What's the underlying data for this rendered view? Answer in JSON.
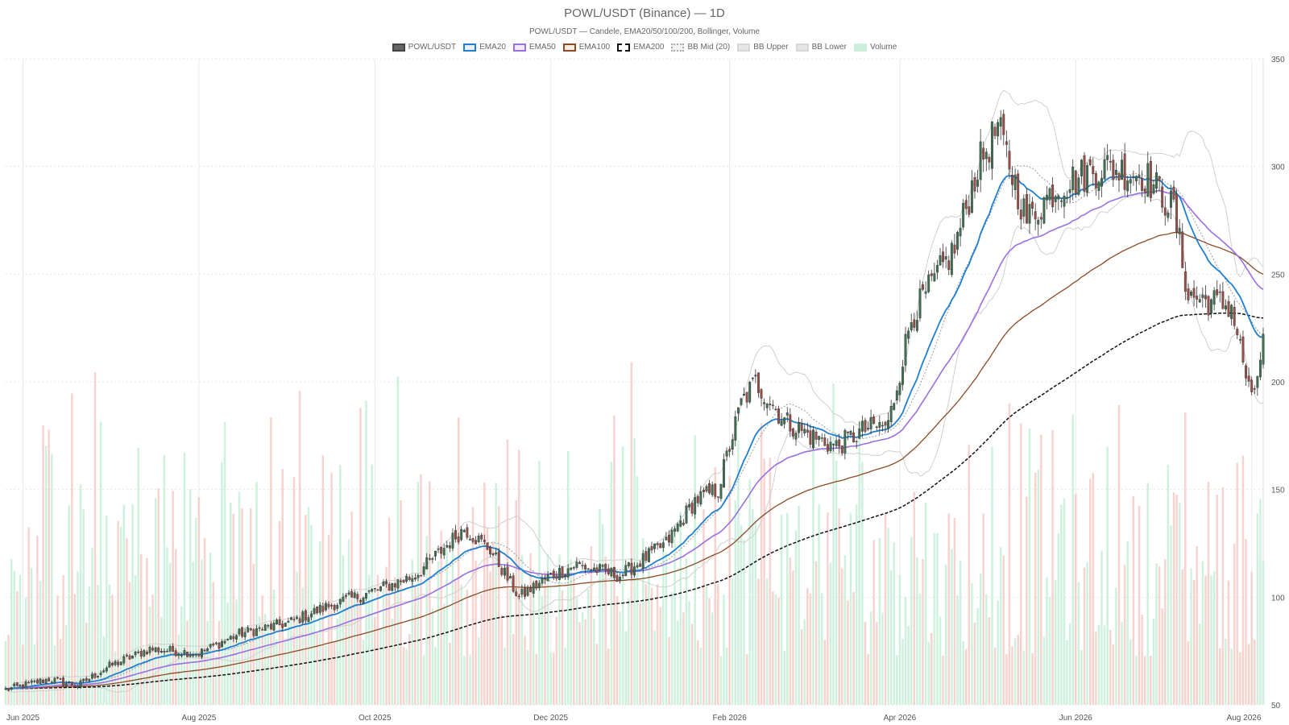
{
  "chart_data": {
    "type": "candlestick",
    "title": "POWL/USDT (Binance) — 1D",
    "subtitle": "POWL/USDT — Candele, EMA20/50/100/200, Bollinger, Volume",
    "legend": [
      {
        "name": "POWL/USDT",
        "fill": "#666666",
        "border": "#444444",
        "style": "solid"
      },
      {
        "name": "EMA20",
        "fill": "#e8f1fb",
        "border": "#1f7fd0",
        "style": "solid"
      },
      {
        "name": "EMA50",
        "fill": "#f1ecfb",
        "border": "#9b6fe0",
        "style": "solid"
      },
      {
        "name": "EMA100",
        "fill": "#f7ece4",
        "border": "#8b4a25",
        "style": "solid"
      },
      {
        "name": "EMA200",
        "fill": "#ffffff",
        "border": "#111111",
        "style": "dashed"
      },
      {
        "name": "BB Mid (20)",
        "fill": "#f2f2f2",
        "border": "#aaaaaa",
        "style": "dotted"
      },
      {
        "name": "BB Upper",
        "fill": "#e6e6e6",
        "border": "#d6d6d6",
        "style": "solid"
      },
      {
        "name": "BB Lower",
        "fill": "#e6e6e6",
        "border": "#d6d6d6",
        "style": "solid"
      },
      {
        "name": "Volume",
        "fill": "#cdeedd",
        "border": "#cdeedd",
        "style": "solid"
      }
    ],
    "x_range": [
      "2025-05-26",
      "2026-08-05"
    ],
    "x_ticks": [
      "Jun 2025",
      "Aug 2025",
      "Oct 2025",
      "Dec 2025",
      "Feb 2026",
      "Apr 2026",
      "Jun 2026",
      "Aug 2026"
    ],
    "y_range": [
      50,
      350
    ],
    "y_ticks": [
      50,
      100,
      150,
      200,
      250,
      300,
      350
    ],
    "y_axis_side": "right",
    "grid": true,
    "legend_position": "top-center",
    "colors": {
      "up": "#3f7050",
      "down": "#9b4e47",
      "vol_up": "#c6eed8",
      "vol_down": "#f5cbc6"
    },
    "price_path": [
      [
        "2025-05-26",
        57
      ],
      [
        "2025-06-10",
        62
      ],
      [
        "2025-06-20",
        59
      ],
      [
        "2025-07-01",
        68
      ],
      [
        "2025-07-15",
        76
      ],
      [
        "2025-08-01",
        74
      ],
      [
        "2025-08-15",
        83
      ],
      [
        "2025-09-01",
        88
      ],
      [
        "2025-09-15",
        96
      ],
      [
        "2025-10-01",
        103
      ],
      [
        "2025-10-15",
        110
      ],
      [
        "2025-11-01",
        132
      ],
      [
        "2025-11-10",
        122
      ],
      [
        "2025-11-20",
        100
      ],
      [
        "2025-12-01",
        110
      ],
      [
        "2025-12-10",
        115
      ],
      [
        "2025-12-25",
        110
      ],
      [
        "2026-01-10",
        125
      ],
      [
        "2026-01-20",
        145
      ],
      [
        "2026-01-28",
        150
      ],
      [
        "2026-02-05",
        190
      ],
      [
        "2026-02-10",
        200
      ],
      [
        "2026-02-20",
        182
      ],
      [
        "2026-03-01",
        175
      ],
      [
        "2026-03-10",
        170
      ],
      [
        "2026-03-20",
        178
      ],
      [
        "2026-03-28",
        180
      ],
      [
        "2026-04-05",
        230
      ],
      [
        "2026-04-20",
        262
      ],
      [
        "2026-04-28",
        300
      ],
      [
        "2026-05-05",
        318
      ],
      [
        "2026-05-15",
        275
      ],
      [
        "2026-05-25",
        290
      ],
      [
        "2026-06-10",
        300
      ],
      [
        "2026-06-25",
        296
      ],
      [
        "2026-07-05",
        280
      ],
      [
        "2026-07-10",
        240
      ],
      [
        "2026-07-25",
        235
      ],
      [
        "2026-08-01",
        190
      ],
      [
        "2026-08-05",
        218
      ]
    ],
    "ema_last": {
      "EMA20": 229,
      "EMA50": 246,
      "EMA100": 237,
      "EMA200": 202
    },
    "bb_last": {
      "BB Upper": 258,
      "BB Lower": 198,
      "BB Mid (20)": 228
    }
  }
}
